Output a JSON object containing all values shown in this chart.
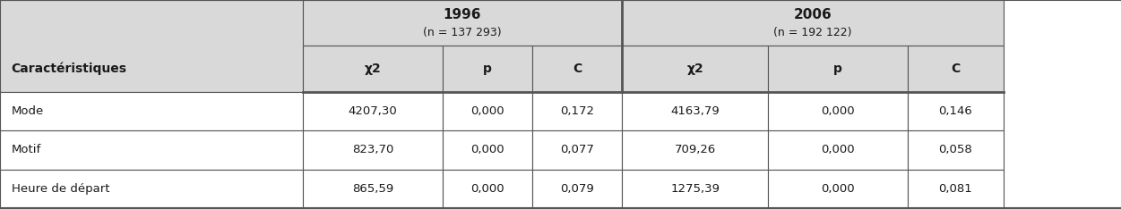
{
  "title_1996": "1996",
  "subtitle_1996": "(n = 137 293)",
  "title_2006": "2006",
  "subtitle_2006": "(n = 192 122)",
  "col_header": "Caractéristiques",
  "sub_headers": [
    "χ2",
    "p",
    "C",
    "χ2",
    "p",
    "C"
  ],
  "rows": [
    [
      "Mode",
      "4207,30",
      "0,000",
      "0,172",
      "4163,79",
      "0,000",
      "0,146"
    ],
    [
      "Motif",
      "823,70",
      "0,000",
      "0,077",
      "709,26",
      "0,000",
      "0,058"
    ],
    [
      "Heure de départ",
      "865,59",
      "0,000",
      "0,079",
      "1275,39",
      "0,000",
      "0,081"
    ]
  ],
  "bg_header": "#d9d9d9",
  "bg_white": "#ffffff",
  "text_color": "#1a1a1a",
  "border_color": "#555555",
  "figsize": [
    12.51,
    2.34
  ],
  "dpi": 100
}
